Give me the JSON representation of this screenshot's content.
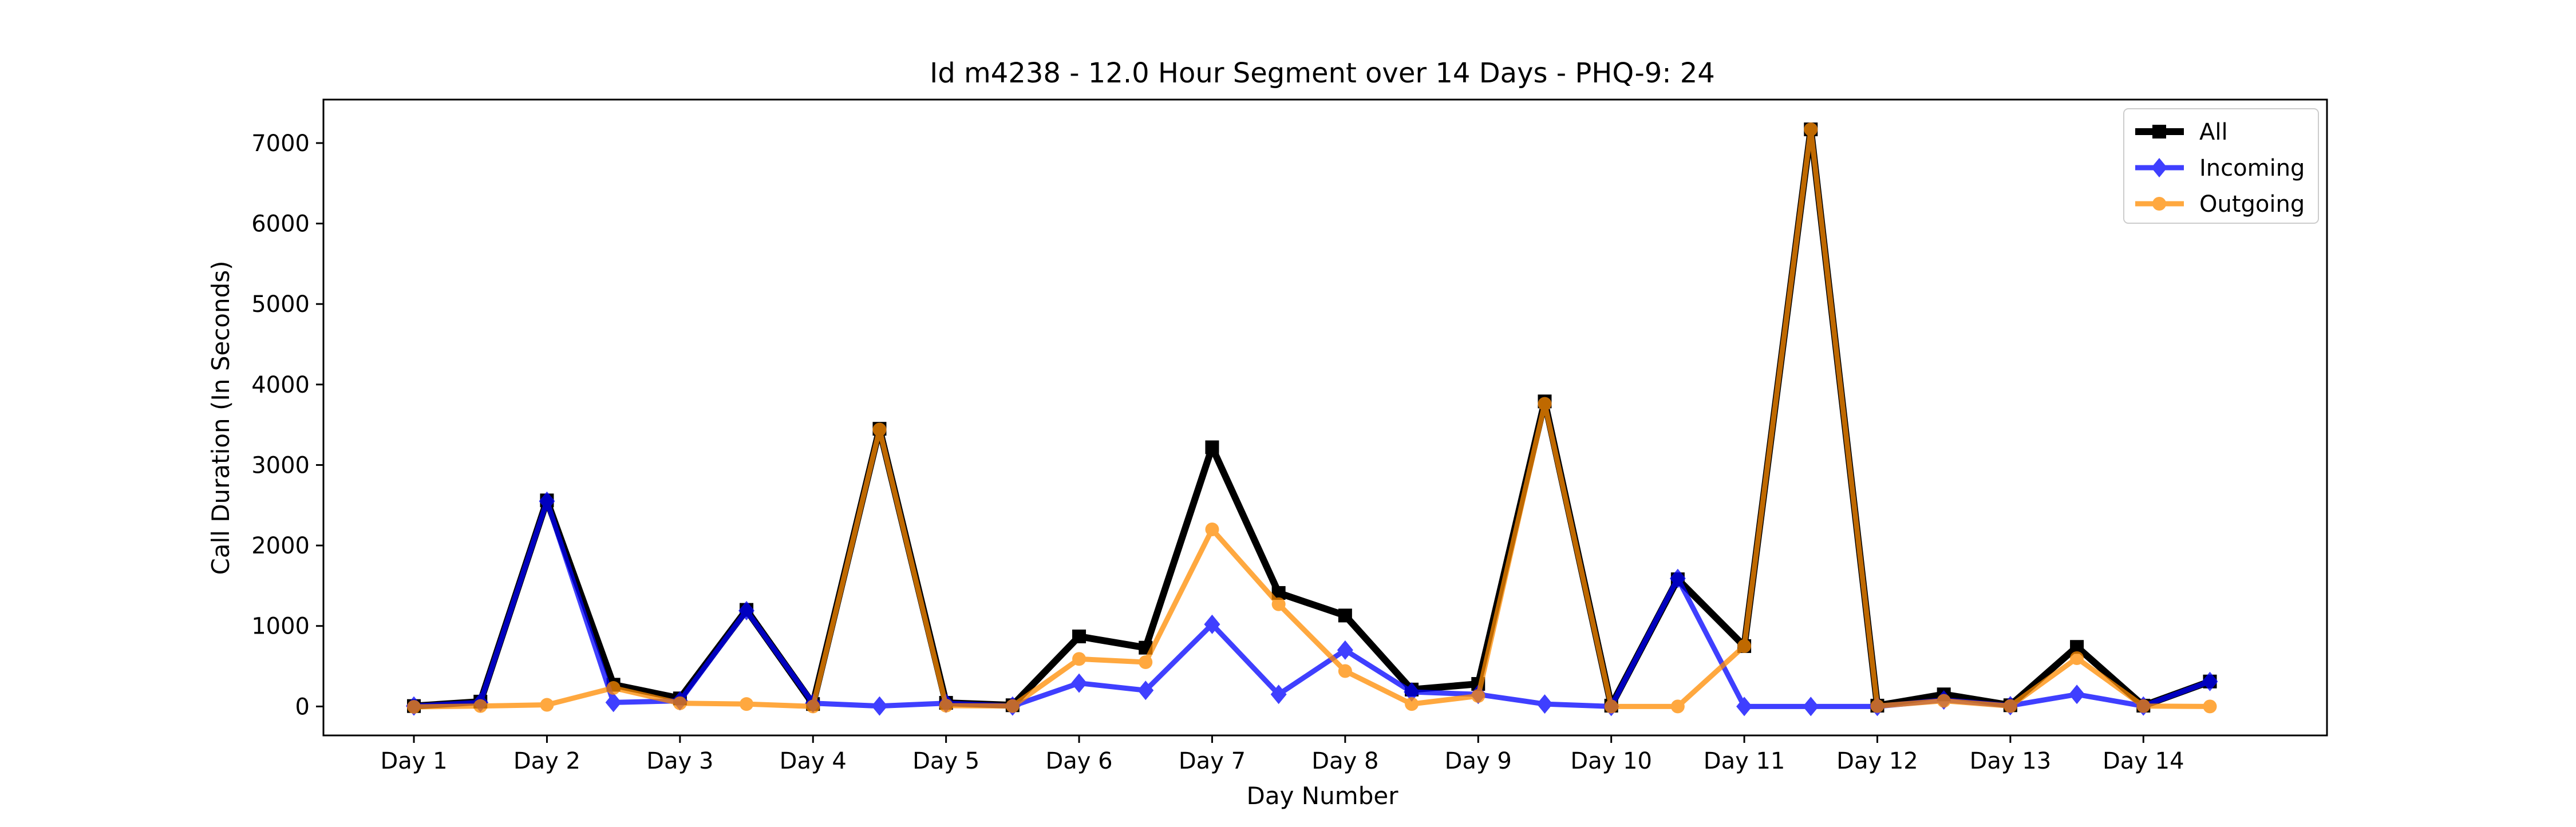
{
  "chart_data": {
    "type": "line",
    "title": "Id m4238 - 12.0 Hour Segment over 14 Days - PHQ-9: 24",
    "xlabel": "Day Number",
    "ylabel": "Call Duration (In Seconds)",
    "x": [
      1,
      1.5,
      2,
      2.5,
      3,
      3.5,
      4,
      4.5,
      5,
      5.5,
      6,
      6.5,
      7,
      7.5,
      8,
      8.5,
      9,
      9.5,
      10,
      10.5,
      11,
      11.5,
      12,
      12.5,
      13,
      13.5,
      14,
      14.5
    ],
    "xlim": [
      0.32,
      15.38
    ],
    "ylim": [
      -360,
      7540
    ],
    "xticks": [
      {
        "value": 1,
        "label": "Day 1"
      },
      {
        "value": 2,
        "label": "Day 2"
      },
      {
        "value": 3,
        "label": "Day 3"
      },
      {
        "value": 4,
        "label": "Day 4"
      },
      {
        "value": 5,
        "label": "Day 5"
      },
      {
        "value": 6,
        "label": "Day 6"
      },
      {
        "value": 7,
        "label": "Day 7"
      },
      {
        "value": 8,
        "label": "Day 8"
      },
      {
        "value": 9,
        "label": "Day 9"
      },
      {
        "value": 10,
        "label": "Day 10"
      },
      {
        "value": 11,
        "label": "Day 11"
      },
      {
        "value": 12,
        "label": "Day 12"
      },
      {
        "value": 13,
        "label": "Day 13"
      },
      {
        "value": 14,
        "label": "Day 14"
      }
    ],
    "yticks": [
      {
        "value": 0,
        "label": "0"
      },
      {
        "value": 1000,
        "label": "1000"
      },
      {
        "value": 2000,
        "label": "2000"
      },
      {
        "value": 3000,
        "label": "3000"
      },
      {
        "value": 4000,
        "label": "4000"
      },
      {
        "value": 5000,
        "label": "5000"
      },
      {
        "value": 6000,
        "label": "6000"
      },
      {
        "value": 7000,
        "label": "7000"
      }
    ],
    "grid": false,
    "legend_position": "top-right",
    "series": [
      {
        "name": "All",
        "color": "#000000",
        "marker": "square",
        "opacity": 1.0,
        "linewidth": 4,
        "values": [
          5,
          60,
          2560,
          270,
          100,
          1200,
          30,
          3450,
          45,
          15,
          870,
          730,
          3220,
          1410,
          1130,
          210,
          280,
          3790,
          10,
          1580,
          750,
          7170,
          10,
          150,
          15,
          740,
          10,
          310
        ]
      },
      {
        "name": "Incoming",
        "color": "#0000ff",
        "marker": "diamond",
        "opacity": 0.75,
        "linewidth": 3,
        "values": [
          5,
          50,
          2550,
          50,
          70,
          1190,
          40,
          5,
          40,
          5,
          290,
          200,
          1020,
          150,
          700,
          180,
          150,
          30,
          0,
          1590,
          0,
          0,
          0,
          80,
          10,
          150,
          5,
          310
        ]
      },
      {
        "name": "Outgoing",
        "color": "#ff8c00",
        "marker": "circle",
        "opacity": 0.75,
        "linewidth": 3,
        "values": [
          -5,
          5,
          20,
          230,
          40,
          30,
          0,
          3440,
          10,
          5,
          590,
          550,
          2200,
          1270,
          440,
          30,
          130,
          3760,
          0,
          0,
          750,
          7170,
          5,
          70,
          5,
          600,
          5,
          0
        ]
      }
    ]
  }
}
